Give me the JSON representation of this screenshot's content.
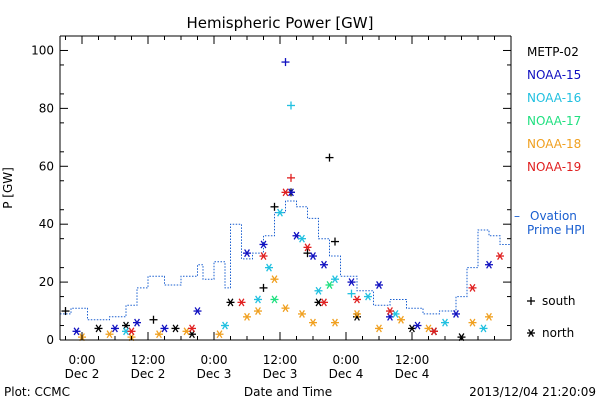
{
  "chart_data": {
    "type": "scatter",
    "title": "Hemispheric Power [GW]",
    "xlabel": "Date and Time",
    "ylabel": "P [GW]",
    "ylim": [
      0,
      105
    ],
    "xlim": [
      "2013-12-01 20:00",
      "2013-12-05 06:00"
    ],
    "yticks": [
      0,
      20,
      40,
      60,
      80,
      100
    ],
    "xticks": [
      {
        "time": "2013-12-02 00:00",
        "l1": "0:00",
        "l2": "Dec 2"
      },
      {
        "time": "2013-12-02 12:00",
        "l1": "12:00",
        "l2": "Dec 2"
      },
      {
        "time": "2013-12-03 00:00",
        "l1": "0:00",
        "l2": "Dec 3"
      },
      {
        "time": "2013-12-03 12:00",
        "l1": "12:00",
        "l2": "Dec 3"
      },
      {
        "time": "2013-12-04 00:00",
        "l1": "0:00",
        "l2": "Dec 4"
      },
      {
        "time": "2013-12-04 12:00",
        "l1": "12:00",
        "l2": "Dec 4"
      }
    ],
    "legend_placement": "right",
    "symbol_legend": [
      {
        "glyph": "+",
        "label": "south"
      },
      {
        "glyph": "*",
        "label": "north"
      }
    ],
    "series": [
      {
        "name": "METP-02",
        "color": "#000000",
        "values": [
          [
            "2013-12-01 21:00",
            10,
            "+"
          ],
          [
            "2013-12-02 03:00",
            4,
            "*"
          ],
          [
            "2013-12-02 08:00",
            5,
            "*"
          ],
          [
            "2013-12-02 13:00",
            7,
            "+"
          ],
          [
            "2013-12-02 17:00",
            4,
            "*"
          ],
          [
            "2013-12-02 20:00",
            2,
            "*"
          ],
          [
            "2013-12-03 03:00",
            13,
            "*"
          ],
          [
            "2013-12-03 09:00",
            18,
            "+"
          ],
          [
            "2013-12-03 11:00",
            46,
            "+"
          ],
          [
            "2013-12-03 14:00",
            51,
            "+"
          ],
          [
            "2013-12-03 17:00",
            30,
            "+"
          ],
          [
            "2013-12-03 19:00",
            13,
            "*"
          ],
          [
            "2013-12-03 21:00",
            63,
            "+"
          ],
          [
            "2013-12-03 22:00",
            34,
            "+"
          ],
          [
            "2013-12-04 02:00",
            8,
            "*"
          ],
          [
            "2013-12-04 12:00",
            4,
            "*"
          ],
          [
            "2013-12-04 16:00",
            3,
            "*"
          ],
          [
            "2013-12-04 21:00",
            1,
            "*"
          ]
        ]
      },
      {
        "name": "NOAA-15",
        "color": "#1010c0",
        "values": [
          [
            "2013-12-01 23:00",
            3,
            "*"
          ],
          [
            "2013-12-02 06:00",
            4,
            "*"
          ],
          [
            "2013-12-02 10:00",
            6,
            "*"
          ],
          [
            "2013-12-02 15:00",
            4,
            "*"
          ],
          [
            "2013-12-02 21:00",
            10,
            "*"
          ],
          [
            "2013-12-03 06:00",
            30,
            "*"
          ],
          [
            "2013-12-03 09:00",
            33,
            "*"
          ],
          [
            "2013-12-03 13:00",
            96,
            "+"
          ],
          [
            "2013-12-03 14:00",
            51,
            "*"
          ],
          [
            "2013-12-03 15:00",
            36,
            "*"
          ],
          [
            "2013-12-03 18:00",
            29,
            "*"
          ],
          [
            "2013-12-03 20:00",
            26,
            "*"
          ],
          [
            "2013-12-04 01:00",
            20,
            "*"
          ],
          [
            "2013-12-04 06:00",
            19,
            "*"
          ],
          [
            "2013-12-04 08:00",
            8,
            "*"
          ],
          [
            "2013-12-04 13:00",
            5,
            "*"
          ],
          [
            "2013-12-04 20:00",
            9,
            "*"
          ],
          [
            "2013-12-05 02:00",
            26,
            "*"
          ]
        ]
      },
      {
        "name": "NOAA-16",
        "color": "#20c0e0",
        "values": [
          [
            "2013-12-02 08:00",
            3,
            "*"
          ],
          [
            "2013-12-03 02:00",
            5,
            "*"
          ],
          [
            "2013-12-03 08:00",
            14,
            "*"
          ],
          [
            "2013-12-03 10:00",
            25,
            "*"
          ],
          [
            "2013-12-03 12:00",
            44,
            "*"
          ],
          [
            "2013-12-03 14:00",
            81,
            "+"
          ],
          [
            "2013-12-03 16:00",
            35,
            "*"
          ],
          [
            "2013-12-03 19:00",
            17,
            "*"
          ],
          [
            "2013-12-03 22:00",
            21,
            "*"
          ],
          [
            "2013-12-04 01:00",
            16,
            "+"
          ],
          [
            "2013-12-04 04:00",
            15,
            "*"
          ],
          [
            "2013-12-04 09:00",
            9,
            "*"
          ],
          [
            "2013-12-04 18:00",
            6,
            "*"
          ],
          [
            "2013-12-05 01:00",
            4,
            "*"
          ]
        ]
      },
      {
        "name": "NOAA-17",
        "color": "#20e080",
        "values": [
          [
            "2013-12-03 11:00",
            14,
            "*"
          ],
          [
            "2013-12-03 21:00",
            19,
            "*"
          ]
        ]
      },
      {
        "name": "NOAA-18",
        "color": "#f0a020",
        "values": [
          [
            "2013-12-02 00:00",
            1,
            "*"
          ],
          [
            "2013-12-02 05:00",
            2,
            "*"
          ],
          [
            "2013-12-02 09:00",
            1,
            "*"
          ],
          [
            "2013-12-02 14:00",
            2,
            "*"
          ],
          [
            "2013-12-02 19:00",
            3,
            "*"
          ],
          [
            "2013-12-03 01:00",
            2,
            "*"
          ],
          [
            "2013-12-03 06:00",
            8,
            "*"
          ],
          [
            "2013-12-03 08:00",
            10,
            "*"
          ],
          [
            "2013-12-03 11:00",
            21,
            "*"
          ],
          [
            "2013-12-03 13:00",
            11,
            "*"
          ],
          [
            "2013-12-03 16:00",
            9,
            "*"
          ],
          [
            "2013-12-03 18:00",
            6,
            "*"
          ],
          [
            "2013-12-03 22:00",
            6,
            "*"
          ],
          [
            "2013-12-04 02:00",
            9,
            "*"
          ],
          [
            "2013-12-04 06:00",
            4,
            "*"
          ],
          [
            "2013-12-04 10:00",
            7,
            "*"
          ],
          [
            "2013-12-04 15:00",
            4,
            "*"
          ],
          [
            "2013-12-04 23:00",
            6,
            "*"
          ],
          [
            "2013-12-05 02:00",
            8,
            "*"
          ]
        ]
      },
      {
        "name": "NOAA-19",
        "color": "#e02020",
        "values": [
          [
            "2013-12-02 09:00",
            3,
            "*"
          ],
          [
            "2013-12-02 20:00",
            4,
            "*"
          ],
          [
            "2013-12-03 05:00",
            13,
            "*"
          ],
          [
            "2013-12-03 09:00",
            29,
            "*"
          ],
          [
            "2013-12-03 13:00",
            51,
            "*"
          ],
          [
            "2013-12-03 14:00",
            56,
            "+"
          ],
          [
            "2013-12-03 17:00",
            32,
            "*"
          ],
          [
            "2013-12-03 20:00",
            13,
            "*"
          ],
          [
            "2013-12-04 02:00",
            14,
            "*"
          ],
          [
            "2013-12-04 08:00",
            10,
            "*"
          ],
          [
            "2013-12-04 16:00",
            3,
            "*"
          ],
          [
            "2013-12-04 23:00",
            18,
            "*"
          ],
          [
            "2013-12-05 04:00",
            29,
            "*"
          ]
        ]
      }
    ],
    "ovation": {
      "name": "Ovation Prime HPI",
      "color": "#1a5fd0",
      "values": [
        [
          "2013-12-01 20:00",
          9
        ],
        [
          "2013-12-01 22:00",
          11
        ],
        [
          "2013-12-02 01:00",
          7
        ],
        [
          "2013-12-02 05:00",
          8
        ],
        [
          "2013-12-02 08:00",
          12
        ],
        [
          "2013-12-02 10:00",
          18
        ],
        [
          "2013-12-02 12:00",
          22
        ],
        [
          "2013-12-02 15:00",
          19
        ],
        [
          "2013-12-02 18:00",
          22
        ],
        [
          "2013-12-02 21:00",
          26
        ],
        [
          "2013-12-02 22:00",
          21
        ],
        [
          "2013-12-03 00:00",
          27
        ],
        [
          "2013-12-03 02:00",
          18
        ],
        [
          "2013-12-03 03:00",
          40
        ],
        [
          "2013-12-03 05:00",
          28
        ],
        [
          "2013-12-03 07:00",
          30
        ],
        [
          "2013-12-03 09:00",
          36
        ],
        [
          "2013-12-03 11:00",
          44
        ],
        [
          "2013-12-03 13:00",
          48
        ],
        [
          "2013-12-03 15:00",
          46
        ],
        [
          "2013-12-03 17:00",
          42
        ],
        [
          "2013-12-03 19:00",
          35
        ],
        [
          "2013-12-03 21:00",
          29
        ],
        [
          "2013-12-03 23:00",
          22
        ],
        [
          "2013-12-04 02:00",
          17
        ],
        [
          "2013-12-04 05:00",
          12
        ],
        [
          "2013-12-04 08:00",
          14
        ],
        [
          "2013-12-04 11:00",
          11
        ],
        [
          "2013-12-04 14:00",
          9
        ],
        [
          "2013-12-04 17:00",
          10
        ],
        [
          "2013-12-04 20:00",
          15
        ],
        [
          "2013-12-04 22:00",
          25
        ],
        [
          "2013-12-05 00:00",
          38
        ],
        [
          "2013-12-05 02:00",
          36
        ],
        [
          "2013-12-05 04:00",
          33
        ],
        [
          "2013-12-05 06:00",
          28
        ]
      ]
    }
  },
  "footer": {
    "left": "Plot: CCMC",
    "right": "2013/12/04 21:20:09"
  }
}
